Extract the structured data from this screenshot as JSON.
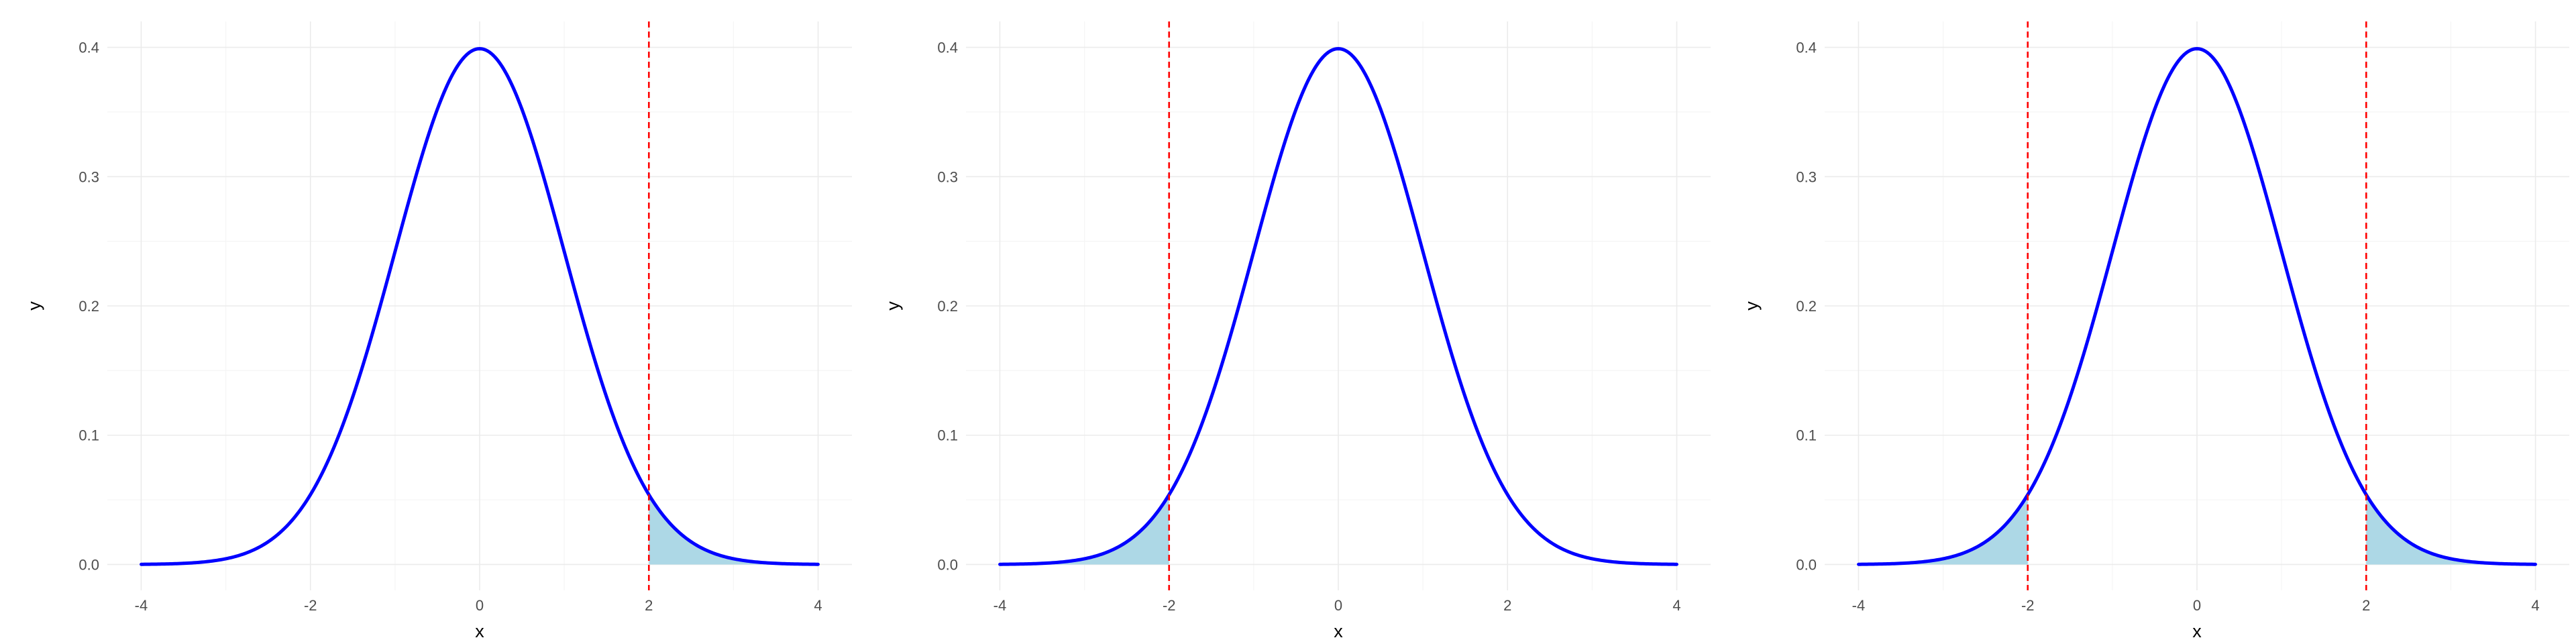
{
  "chart_data": [
    {
      "type": "line",
      "xlabel": "x",
      "ylabel": "y",
      "xlim": [
        -4,
        4
      ],
      "ylim": [
        0,
        0.4
      ],
      "x_ticks": [
        -4,
        -2,
        0,
        2,
        4
      ],
      "y_ticks": [
        0,
        0.1,
        0.2,
        0.3,
        0.4
      ],
      "x_tick_labels": [
        "-4",
        "-2",
        "0",
        "2",
        "4"
      ],
      "y_tick_labels": [
        "0.0",
        "0.1",
        "0.2",
        "0.3",
        "0.4"
      ],
      "grid": true,
      "series": [
        {
          "distribution": "standard normal density",
          "x": [
            -4,
            -3.5,
            -3,
            -2.5,
            -2,
            -1.5,
            -1,
            -0.5,
            0,
            0.5,
            1,
            1.5,
            2,
            2.5,
            3,
            3.5,
            4
          ],
          "y": [
            0.0001,
            0.0009,
            0.0044,
            0.0175,
            0.054,
            0.1295,
            0.242,
            0.3521,
            0.3989,
            0.3521,
            0.242,
            0.1295,
            0.054,
            0.0175,
            0.0044,
            0.0009,
            0.0001
          ]
        }
      ],
      "reference_lines": [
        2
      ],
      "shaded_regions": [
        [
          2,
          4
        ]
      ]
    },
    {
      "type": "line",
      "xlabel": "x",
      "ylabel": "y",
      "xlim": [
        -4,
        4
      ],
      "ylim": [
        0,
        0.4
      ],
      "x_ticks": [
        -4,
        -2,
        0,
        2,
        4
      ],
      "y_ticks": [
        0,
        0.1,
        0.2,
        0.3,
        0.4
      ],
      "x_tick_labels": [
        "-4",
        "-2",
        "0",
        "2",
        "4"
      ],
      "y_tick_labels": [
        "0.0",
        "0.1",
        "0.2",
        "0.3",
        "0.4"
      ],
      "grid": true,
      "series": [
        {
          "distribution": "standard normal density",
          "x": [
            -4,
            -3.5,
            -3,
            -2.5,
            -2,
            -1.5,
            -1,
            -0.5,
            0,
            0.5,
            1,
            1.5,
            2,
            2.5,
            3,
            3.5,
            4
          ],
          "y": [
            0.0001,
            0.0009,
            0.0044,
            0.0175,
            0.054,
            0.1295,
            0.242,
            0.3521,
            0.3989,
            0.3521,
            0.242,
            0.1295,
            0.054,
            0.0175,
            0.0044,
            0.0009,
            0.0001
          ]
        }
      ],
      "reference_lines": [
        -2
      ],
      "shaded_regions": [
        [
          -4,
          -2
        ]
      ]
    },
    {
      "type": "line",
      "xlabel": "x",
      "ylabel": "y",
      "xlim": [
        -4,
        4
      ],
      "ylim": [
        0,
        0.4
      ],
      "x_ticks": [
        -4,
        -2,
        0,
        2,
        4
      ],
      "y_ticks": [
        0,
        0.1,
        0.2,
        0.3,
        0.4
      ],
      "x_tick_labels": [
        "-4",
        "-2",
        "0",
        "2",
        "4"
      ],
      "y_tick_labels": [
        "0.0",
        "0.1",
        "0.2",
        "0.3",
        "0.4"
      ],
      "grid": true,
      "series": [
        {
          "distribution": "standard normal density",
          "x": [
            -4,
            -3.5,
            -3,
            -2.5,
            -2,
            -1.5,
            -1,
            -0.5,
            0,
            0.5,
            1,
            1.5,
            2,
            2.5,
            3,
            3.5,
            4
          ],
          "y": [
            0.0001,
            0.0009,
            0.0044,
            0.0175,
            0.054,
            0.1295,
            0.242,
            0.3521,
            0.3989,
            0.3521,
            0.242,
            0.1295,
            0.054,
            0.0175,
            0.0044,
            0.0009,
            0.0001
          ]
        }
      ],
      "reference_lines": [
        -2,
        2
      ],
      "shaded_regions": [
        [
          -4,
          -2
        ],
        [
          2,
          4
        ]
      ]
    }
  ],
  "colors": {
    "curve": "#0000ff",
    "reference_line": "#ff0000",
    "shade": "#add8e6",
    "grid_major": "#ebebeb",
    "grid_minor": "#f5f5f5",
    "tick_text": "#4d4d4d",
    "axis_title": "#000000"
  }
}
